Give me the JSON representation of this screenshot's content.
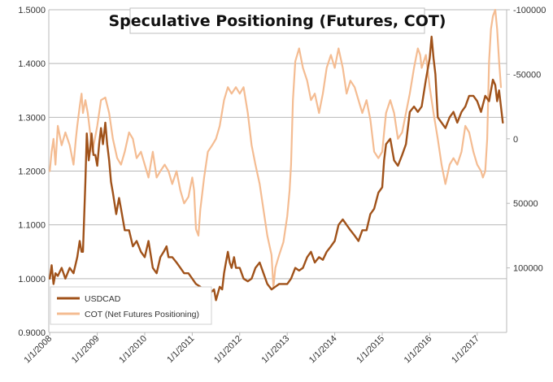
{
  "chart_data": {
    "type": "line",
    "title": "Speculative Positioning (Futures, COT)",
    "xlabel": "",
    "ylabel": "",
    "x_tick_labels": [
      "1/1/2008",
      "1/1/2009",
      "1/1/2010",
      "1/1/2011",
      "1/1/2012",
      "1/1/2013",
      "1/1/2014",
      "1/1/2015",
      "1/1/2016",
      "1/1/2017"
    ],
    "left_axis": {
      "range": [
        0.9,
        1.5
      ],
      "tick_values": [
        0.9,
        1.0,
        1.1,
        1.2,
        1.3,
        1.4,
        1.5
      ],
      "tick_labels": [
        "0.9000",
        "1.0000",
        "1.1000",
        "1.2000",
        "1.3000",
        "1.4000",
        "1.5000"
      ]
    },
    "right_axis": {
      "range": [
        -100000,
        150000
      ],
      "inverted": true,
      "tick_values": [
        -100000,
        -50000,
        0,
        50000,
        100000
      ],
      "tick_labels": [
        "-100000",
        "-50000",
        "0",
        "50000",
        "100000"
      ]
    },
    "grid": "horizontal",
    "legend_position": "bottom-left",
    "series": [
      {
        "name": "USDCAD",
        "axis": "left",
        "color": "#a0521a",
        "points": [
          [
            2008.0,
            1.0
          ],
          [
            2008.04,
            1.025
          ],
          [
            2008.08,
            0.99
          ],
          [
            2008.12,
            1.01
          ],
          [
            2008.17,
            1.005
          ],
          [
            2008.25,
            1.02
          ],
          [
            2008.33,
            1.0
          ],
          [
            2008.42,
            1.02
          ],
          [
            2008.5,
            1.01
          ],
          [
            2008.58,
            1.04
          ],
          [
            2008.63,
            1.07
          ],
          [
            2008.67,
            1.05
          ],
          [
            2008.7,
            1.05
          ],
          [
            2008.75,
            1.18
          ],
          [
            2008.78,
            1.27
          ],
          [
            2008.82,
            1.22
          ],
          [
            2008.85,
            1.24
          ],
          [
            2008.88,
            1.27
          ],
          [
            2008.92,
            1.23
          ],
          [
            2008.96,
            1.23
          ],
          [
            2009.0,
            1.21
          ],
          [
            2009.04,
            1.25
          ],
          [
            2009.08,
            1.28
          ],
          [
            2009.12,
            1.25
          ],
          [
            2009.17,
            1.29
          ],
          [
            2009.21,
            1.25
          ],
          [
            2009.25,
            1.22
          ],
          [
            2009.29,
            1.18
          ],
          [
            2009.33,
            1.16
          ],
          [
            2009.4,
            1.12
          ],
          [
            2009.46,
            1.15
          ],
          [
            2009.5,
            1.13
          ],
          [
            2009.58,
            1.09
          ],
          [
            2009.67,
            1.09
          ],
          [
            2009.75,
            1.06
          ],
          [
            2009.83,
            1.07
          ],
          [
            2009.92,
            1.05
          ],
          [
            2010.0,
            1.04
          ],
          [
            2010.08,
            1.07
          ],
          [
            2010.17,
            1.02
          ],
          [
            2010.25,
            1.01
          ],
          [
            2010.33,
            1.04
          ],
          [
            2010.4,
            1.05
          ],
          [
            2010.46,
            1.06
          ],
          [
            2010.5,
            1.04
          ],
          [
            2010.58,
            1.04
          ],
          [
            2010.67,
            1.03
          ],
          [
            2010.75,
            1.02
          ],
          [
            2010.83,
            1.01
          ],
          [
            2010.92,
            1.01
          ],
          [
            2011.0,
            1.0
          ],
          [
            2011.08,
            0.99
          ],
          [
            2011.17,
            0.985
          ],
          [
            2011.25,
            0.98
          ],
          [
            2011.33,
            0.98
          ],
          [
            2011.4,
            0.975
          ],
          [
            2011.46,
            0.98
          ],
          [
            2011.5,
            0.96
          ],
          [
            2011.58,
            0.985
          ],
          [
            2011.63,
            0.98
          ],
          [
            2011.67,
            1.01
          ],
          [
            2011.71,
            1.03
          ],
          [
            2011.75,
            1.05
          ],
          [
            2011.79,
            1.03
          ],
          [
            2011.83,
            1.02
          ],
          [
            2011.88,
            1.04
          ],
          [
            2011.92,
            1.02
          ],
          [
            2012.0,
            1.02
          ],
          [
            2012.08,
            1.0
          ],
          [
            2012.17,
            0.995
          ],
          [
            2012.25,
            1.0
          ],
          [
            2012.33,
            1.02
          ],
          [
            2012.42,
            1.03
          ],
          [
            2012.5,
            1.01
          ],
          [
            2012.58,
            0.99
          ],
          [
            2012.67,
            0.98
          ],
          [
            2012.75,
            0.985
          ],
          [
            2012.83,
            0.99
          ],
          [
            2012.92,
            0.99
          ],
          [
            2013.0,
            0.99
          ],
          [
            2013.08,
            1.0
          ],
          [
            2013.17,
            1.02
          ],
          [
            2013.25,
            1.015
          ],
          [
            2013.33,
            1.02
          ],
          [
            2013.42,
            1.04
          ],
          [
            2013.5,
            1.05
          ],
          [
            2013.58,
            1.03
          ],
          [
            2013.67,
            1.04
          ],
          [
            2013.75,
            1.035
          ],
          [
            2013.83,
            1.05
          ],
          [
            2013.92,
            1.06
          ],
          [
            2014.0,
            1.07
          ],
          [
            2014.08,
            1.1
          ],
          [
            2014.17,
            1.11
          ],
          [
            2014.25,
            1.1
          ],
          [
            2014.33,
            1.09
          ],
          [
            2014.42,
            1.08
          ],
          [
            2014.5,
            1.07
          ],
          [
            2014.58,
            1.09
          ],
          [
            2014.67,
            1.09
          ],
          [
            2014.75,
            1.12
          ],
          [
            2014.83,
            1.13
          ],
          [
            2014.92,
            1.16
          ],
          [
            2015.0,
            1.17
          ],
          [
            2015.04,
            1.22
          ],
          [
            2015.08,
            1.25
          ],
          [
            2015.17,
            1.26
          ],
          [
            2015.25,
            1.22
          ],
          [
            2015.33,
            1.21
          ],
          [
            2015.42,
            1.23
          ],
          [
            2015.5,
            1.25
          ],
          [
            2015.58,
            1.31
          ],
          [
            2015.67,
            1.32
          ],
          [
            2015.75,
            1.31
          ],
          [
            2015.83,
            1.32
          ],
          [
            2015.92,
            1.37
          ],
          [
            2016.0,
            1.41
          ],
          [
            2016.04,
            1.45
          ],
          [
            2016.08,
            1.41
          ],
          [
            2016.12,
            1.38
          ],
          [
            2016.17,
            1.3
          ],
          [
            2016.25,
            1.29
          ],
          [
            2016.33,
            1.28
          ],
          [
            2016.42,
            1.3
          ],
          [
            2016.5,
            1.31
          ],
          [
            2016.58,
            1.29
          ],
          [
            2016.67,
            1.31
          ],
          [
            2016.75,
            1.32
          ],
          [
            2016.83,
            1.34
          ],
          [
            2016.92,
            1.34
          ],
          [
            2017.0,
            1.33
          ],
          [
            2017.08,
            1.31
          ],
          [
            2017.17,
            1.34
          ],
          [
            2017.25,
            1.33
          ],
          [
            2017.33,
            1.37
          ],
          [
            2017.38,
            1.36
          ],
          [
            2017.42,
            1.33
          ],
          [
            2017.46,
            1.35
          ],
          [
            2017.5,
            1.32
          ],
          [
            2017.54,
            1.29
          ]
        ]
      },
      {
        "name": "COT (Net Futures Positioning)",
        "axis": "right",
        "color": "#f4bc92",
        "points": [
          [
            2008.0,
            25000
          ],
          [
            2008.04,
            10000
          ],
          [
            2008.08,
            0
          ],
          [
            2008.12,
            20000
          ],
          [
            2008.17,
            -10000
          ],
          [
            2008.25,
            5000
          ],
          [
            2008.33,
            -5000
          ],
          [
            2008.42,
            5000
          ],
          [
            2008.5,
            20000
          ],
          [
            2008.55,
            0
          ],
          [
            2008.58,
            -10000
          ],
          [
            2008.63,
            -25000
          ],
          [
            2008.67,
            -35000
          ],
          [
            2008.7,
            -20000
          ],
          [
            2008.75,
            -30000
          ],
          [
            2008.8,
            -20000
          ],
          [
            2008.85,
            -5000
          ],
          [
            2008.9,
            10000
          ],
          [
            2009.0,
            -10000
          ],
          [
            2009.08,
            -30000
          ],
          [
            2009.17,
            -32000
          ],
          [
            2009.25,
            -20000
          ],
          [
            2009.33,
            0
          ],
          [
            2009.42,
            15000
          ],
          [
            2009.5,
            20000
          ],
          [
            2009.58,
            10000
          ],
          [
            2009.67,
            -5000
          ],
          [
            2009.75,
            0
          ],
          [
            2009.83,
            15000
          ],
          [
            2009.92,
            10000
          ],
          [
            2010.0,
            20000
          ],
          [
            2010.08,
            30000
          ],
          [
            2010.17,
            10000
          ],
          [
            2010.25,
            30000
          ],
          [
            2010.33,
            25000
          ],
          [
            2010.42,
            20000
          ],
          [
            2010.5,
            25000
          ],
          [
            2010.58,
            35000
          ],
          [
            2010.67,
            25000
          ],
          [
            2010.75,
            40000
          ],
          [
            2010.83,
            50000
          ],
          [
            2010.92,
            45000
          ],
          [
            2011.0,
            30000
          ],
          [
            2011.04,
            40000
          ],
          [
            2011.08,
            70000
          ],
          [
            2011.13,
            75000
          ],
          [
            2011.17,
            55000
          ],
          [
            2011.25,
            30000
          ],
          [
            2011.33,
            10000
          ],
          [
            2011.42,
            5000
          ],
          [
            2011.5,
            0
          ],
          [
            2011.58,
            -10000
          ],
          [
            2011.67,
            -30000
          ],
          [
            2011.75,
            -40000
          ],
          [
            2011.83,
            -35000
          ],
          [
            2011.92,
            -40000
          ],
          [
            2012.0,
            -35000
          ],
          [
            2012.08,
            -40000
          ],
          [
            2012.17,
            -20000
          ],
          [
            2012.25,
            5000
          ],
          [
            2012.33,
            20000
          ],
          [
            2012.42,
            35000
          ],
          [
            2012.5,
            55000
          ],
          [
            2012.58,
            75000
          ],
          [
            2012.67,
            90000
          ],
          [
            2012.71,
            115000
          ],
          [
            2012.75,
            100000
          ],
          [
            2012.79,
            95000
          ],
          [
            2012.83,
            90000
          ],
          [
            2012.92,
            80000
          ],
          [
            2013.0,
            60000
          ],
          [
            2013.05,
            40000
          ],
          [
            2013.08,
            20000
          ],
          [
            2013.12,
            -30000
          ],
          [
            2013.17,
            -60000
          ],
          [
            2013.25,
            -70000
          ],
          [
            2013.33,
            -55000
          ],
          [
            2013.42,
            -45000
          ],
          [
            2013.5,
            -30000
          ],
          [
            2013.58,
            -35000
          ],
          [
            2013.67,
            -20000
          ],
          [
            2013.75,
            -35000
          ],
          [
            2013.83,
            -55000
          ],
          [
            2013.92,
            -65000
          ],
          [
            2014.0,
            -55000
          ],
          [
            2014.08,
            -70000
          ],
          [
            2014.17,
            -55000
          ],
          [
            2014.25,
            -35000
          ],
          [
            2014.33,
            -45000
          ],
          [
            2014.42,
            -40000
          ],
          [
            2014.5,
            -30000
          ],
          [
            2014.58,
            -20000
          ],
          [
            2014.67,
            -30000
          ],
          [
            2014.75,
            -15000
          ],
          [
            2014.83,
            10000
          ],
          [
            2014.92,
            15000
          ],
          [
            2015.0,
            10000
          ],
          [
            2015.04,
            -5000
          ],
          [
            2015.08,
            -20000
          ],
          [
            2015.17,
            -30000
          ],
          [
            2015.25,
            -20000
          ],
          [
            2015.33,
            0
          ],
          [
            2015.42,
            -5000
          ],
          [
            2015.5,
            -20000
          ],
          [
            2015.58,
            -35000
          ],
          [
            2015.67,
            -55000
          ],
          [
            2015.75,
            -70000
          ],
          [
            2015.8,
            -65000
          ],
          [
            2015.83,
            -55000
          ],
          [
            2015.92,
            -65000
          ],
          [
            2016.0,
            -40000
          ],
          [
            2016.08,
            -20000
          ],
          [
            2016.17,
            0
          ],
          [
            2016.25,
            20000
          ],
          [
            2016.33,
            35000
          ],
          [
            2016.42,
            20000
          ],
          [
            2016.5,
            15000
          ],
          [
            2016.58,
            20000
          ],
          [
            2016.67,
            10000
          ],
          [
            2016.75,
            -10000
          ],
          [
            2016.83,
            -5000
          ],
          [
            2016.92,
            10000
          ],
          [
            2017.0,
            20000
          ],
          [
            2017.08,
            25000
          ],
          [
            2017.12,
            30000
          ],
          [
            2017.17,
            25000
          ],
          [
            2017.21,
            0
          ],
          [
            2017.25,
            -60000
          ],
          [
            2017.29,
            -85000
          ],
          [
            2017.33,
            -95000
          ],
          [
            2017.38,
            -100000
          ],
          [
            2017.42,
            -85000
          ],
          [
            2017.46,
            -60000
          ],
          [
            2017.5,
            -40000
          ]
        ]
      }
    ]
  }
}
